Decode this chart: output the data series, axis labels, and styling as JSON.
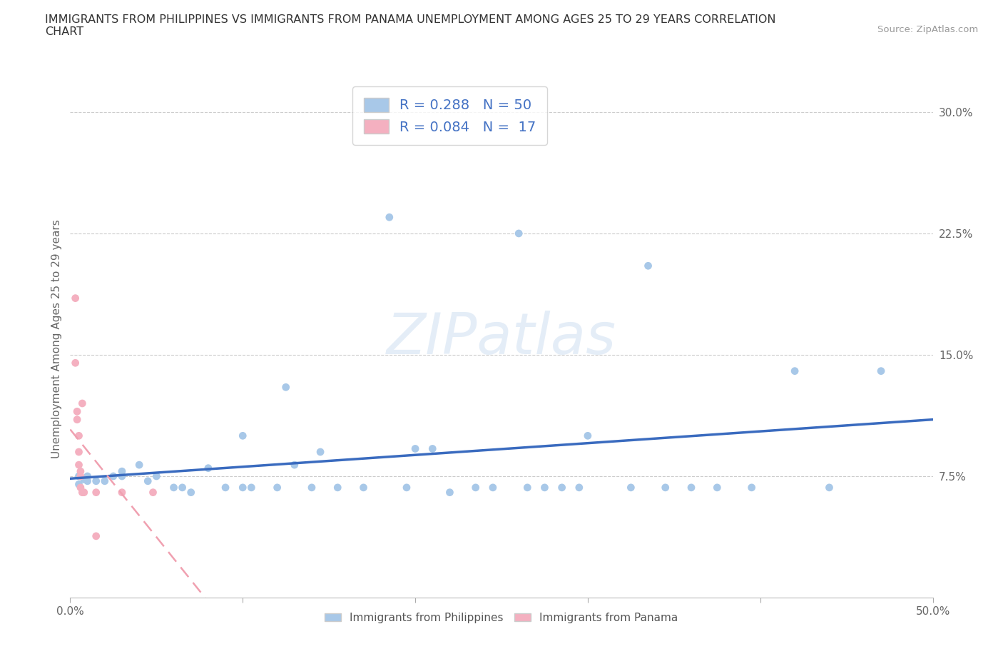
{
  "title_line1": "IMMIGRANTS FROM PHILIPPINES VS IMMIGRANTS FROM PANAMA UNEMPLOYMENT AMONG AGES 25 TO 29 YEARS CORRELATION",
  "title_line2": "CHART",
  "source": "Source: ZipAtlas.com",
  "ylabel": "Unemployment Among Ages 25 to 29 years",
  "xlim": [
    0.0,
    0.5
  ],
  "ylim": [
    0.0,
    0.32
  ],
  "xticks": [
    0.0,
    0.1,
    0.2,
    0.3,
    0.4,
    0.5
  ],
  "xticklabels": [
    "0.0%",
    "",
    "",
    "",
    "",
    "50.0%"
  ],
  "yticks": [
    0.075,
    0.15,
    0.225,
    0.3
  ],
  "yticklabels": [
    "7.5%",
    "15.0%",
    "22.5%",
    "30.0%"
  ],
  "R_phil": 0.288,
  "N_phil": 50,
  "R_pan": 0.084,
  "N_pan": 17,
  "color_phil": "#a8c8e8",
  "color_pan": "#f4b0c0",
  "line_color_phil": "#3a6bbf",
  "line_color_pan": "#f0a0b0",
  "watermark_text": "ZIPatlas",
  "phil_x": [
    0.005,
    0.005,
    0.008,
    0.01,
    0.01,
    0.015,
    0.02,
    0.025,
    0.03,
    0.03,
    0.04,
    0.045,
    0.05,
    0.06,
    0.065,
    0.07,
    0.08,
    0.09,
    0.1,
    0.1,
    0.105,
    0.12,
    0.125,
    0.13,
    0.14,
    0.145,
    0.155,
    0.17,
    0.185,
    0.195,
    0.2,
    0.21,
    0.22,
    0.235,
    0.245,
    0.26,
    0.265,
    0.275,
    0.285,
    0.295,
    0.3,
    0.325,
    0.335,
    0.345,
    0.36,
    0.375,
    0.395,
    0.42,
    0.44,
    0.47
  ],
  "phil_y": [
    0.07,
    0.075,
    0.073,
    0.072,
    0.075,
    0.072,
    0.072,
    0.075,
    0.078,
    0.075,
    0.082,
    0.072,
    0.075,
    0.068,
    0.068,
    0.065,
    0.08,
    0.068,
    0.068,
    0.1,
    0.068,
    0.068,
    0.13,
    0.082,
    0.068,
    0.09,
    0.068,
    0.068,
    0.235,
    0.068,
    0.092,
    0.092,
    0.065,
    0.068,
    0.068,
    0.225,
    0.068,
    0.068,
    0.068,
    0.068,
    0.1,
    0.068,
    0.205,
    0.068,
    0.068,
    0.068,
    0.068,
    0.14,
    0.068,
    0.14
  ],
  "pan_x": [
    0.003,
    0.003,
    0.004,
    0.004,
    0.005,
    0.005,
    0.005,
    0.006,
    0.006,
    0.006,
    0.007,
    0.007,
    0.008,
    0.015,
    0.015,
    0.03,
    0.048
  ],
  "pan_y": [
    0.185,
    0.145,
    0.115,
    0.11,
    0.1,
    0.09,
    0.082,
    0.078,
    0.075,
    0.068,
    0.065,
    0.12,
    0.065,
    0.065,
    0.038,
    0.065,
    0.065
  ]
}
